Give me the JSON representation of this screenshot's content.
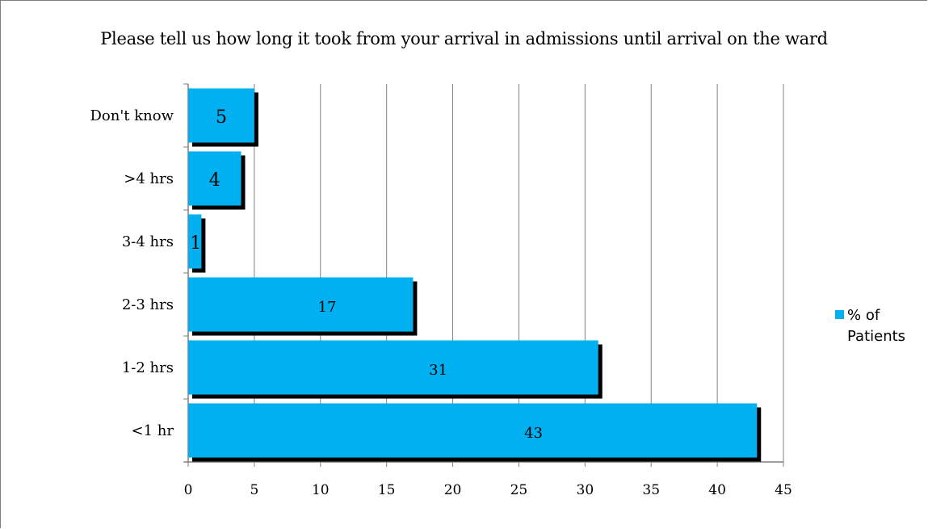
{
  "chart_data": {
    "type": "bar",
    "orientation": "horizontal",
    "title": "Please tell us how long it took from your arrival in admissions until arrival on the ward",
    "categories": [
      "<1 hr",
      "1-2 hrs",
      "2-3 hrs",
      "3-4 hrs",
      ">4 hrs",
      "Don't know"
    ],
    "series": [
      {
        "name": "% of Patients",
        "values": [
          43,
          31,
          17,
          1,
          4,
          5
        ]
      }
    ],
    "data_labels": [
      "43",
      "31",
      "17",
      "1",
      "4",
      "5"
    ],
    "xlim": [
      0,
      45
    ],
    "x_ticks": [
      0,
      5,
      10,
      15,
      20,
      25,
      30,
      35,
      40,
      45
    ],
    "grid": "vertical",
    "legend_position": "right",
    "bar_color": "#00b0f0",
    "shadow_color": "#000000"
  }
}
